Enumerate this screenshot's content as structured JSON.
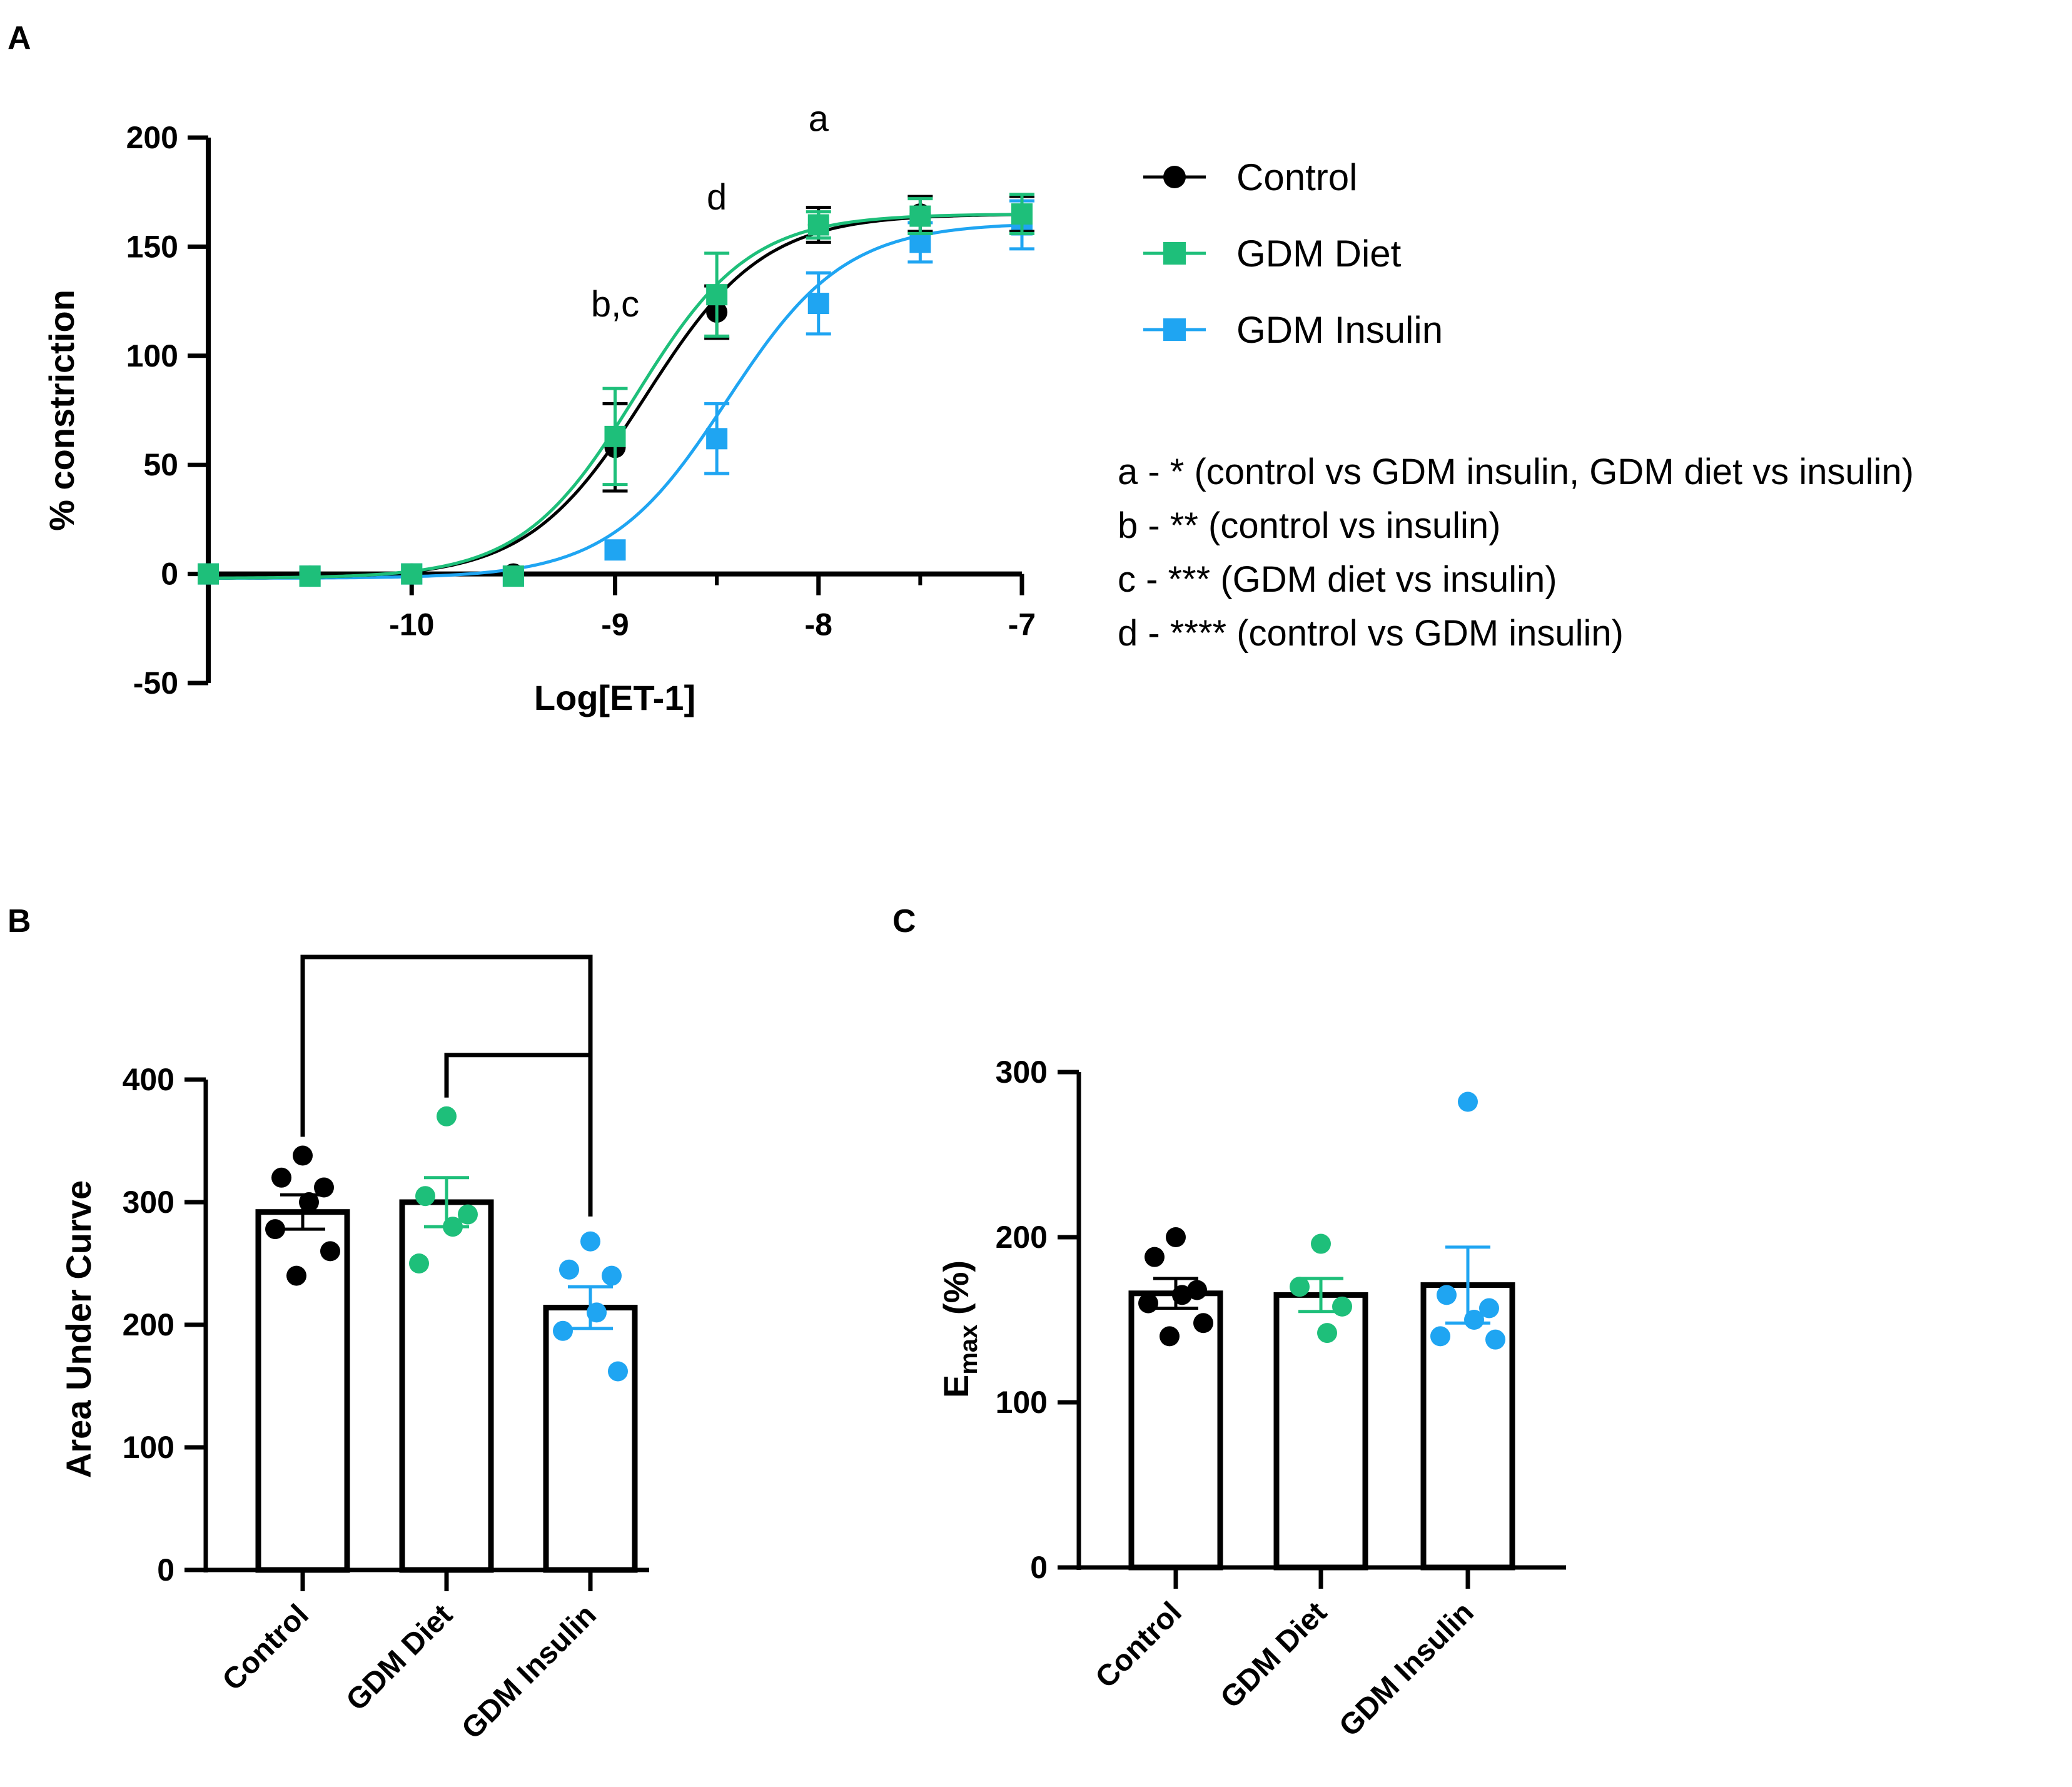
{
  "panels": {
    "a": {
      "letter": "A"
    },
    "b": {
      "letter": "B"
    },
    "c": {
      "letter": "C"
    }
  },
  "colors": {
    "Control": "#000000",
    "GDM Diet": "#1ebf7a",
    "GDM Insulin": "#1fa5f2"
  },
  "chart_data": [
    {
      "panel": "A",
      "type": "line",
      "xlabel": "Log[ET-1]",
      "ylabel": "% constriction",
      "xlim": [
        -11,
        -7
      ],
      "ylim": [
        -50,
        200
      ],
      "xticks": [
        "-10",
        "-9",
        "-8",
        "-7"
      ],
      "yticks": [
        "-50",
        "0",
        "50",
        "100",
        "150",
        "200"
      ],
      "x": [
        -11,
        -10.5,
        -10,
        -9.5,
        -9,
        -8.5,
        -8,
        -7.5,
        -7
      ],
      "series": [
        {
          "name": "Control",
          "marker": "circle",
          "values": [
            0,
            -1,
            0,
            0,
            58,
            120,
            160,
            165,
            165
          ],
          "errors": [
            0,
            0,
            0,
            0,
            20,
            12,
            8,
            8,
            8
          ],
          "fit": {
            "bottom": -2,
            "top": 165,
            "logec50": -8.85,
            "hill": 1.5
          }
        },
        {
          "name": "GDM Diet",
          "marker": "square",
          "values": [
            0,
            -1,
            0,
            -1,
            63,
            128,
            160,
            164,
            165
          ],
          "errors": [
            0,
            0,
            0,
            0,
            22,
            19,
            6,
            8,
            9
          ],
          "fit": {
            "bottom": -2,
            "top": 165,
            "logec50": -8.9,
            "hill": 1.55
          }
        },
        {
          "name": "GDM Insulin",
          "marker": "square",
          "values": [
            0,
            -1,
            0,
            -1,
            11,
            62,
            124,
            152,
            160
          ],
          "errors": [
            0,
            0,
            0,
            0,
            0,
            16,
            14,
            9,
            11
          ],
          "fit": {
            "bottom": -2,
            "top": 161,
            "logec50": -8.45,
            "hill": 1.5
          }
        }
      ],
      "annotations": [
        {
          "text": "a",
          "x": -8,
          "y": 203
        },
        {
          "text": "d",
          "x": -8.5,
          "y": 167
        },
        {
          "text": "b,c",
          "x": -9,
          "y": 118
        }
      ],
      "legend": "right",
      "notes": [
        "a - * (control vs GDM insulin, GDM diet vs insulin)",
        "b - ** (control vs insulin)",
        "c - *** (GDM diet vs insulin)",
        "d - **** (control vs GDM insulin)"
      ]
    },
    {
      "panel": "B",
      "type": "bar",
      "ylabel": "Area Under Curve",
      "ylim": [
        0,
        400
      ],
      "yticks": [
        "0",
        "100",
        "200",
        "300",
        "400"
      ],
      "categories": [
        "Control",
        "GDM Diet",
        "GDM Insulin"
      ],
      "values": [
        292,
        300,
        214
      ],
      "errors": [
        14,
        20,
        17
      ],
      "points": [
        [
          338,
          320,
          312,
          300,
          278,
          260,
          240
        ],
        [
          370,
          305,
          290,
          280,
          250
        ],
        [
          268,
          245,
          240,
          210,
          195,
          162
        ]
      ],
      "brackets": [
        {
          "from": "Control",
          "to": "GDM Insulin",
          "level": 500
        },
        {
          "from": "GDM Diet",
          "to": "GDM Insulin",
          "level": 420
        }
      ]
    },
    {
      "panel": "C",
      "type": "bar",
      "ylabel_main": "E",
      "ylabel_sub": "max",
      "ylabel_unit": " (%)",
      "ylim": [
        0,
        300
      ],
      "yticks": [
        "0",
        "100",
        "200",
        "300"
      ],
      "categories": [
        "Control",
        "GDM Diet",
        "GDM Insulin"
      ],
      "values": [
        166,
        165,
        171
      ],
      "errors": [
        9,
        10,
        23
      ],
      "points": [
        [
          200,
          188,
          168,
          165,
          160,
          148,
          140
        ],
        [
          196,
          170,
          158,
          142
        ],
        [
          282,
          165,
          157,
          150,
          140,
          138
        ]
      ]
    }
  ]
}
